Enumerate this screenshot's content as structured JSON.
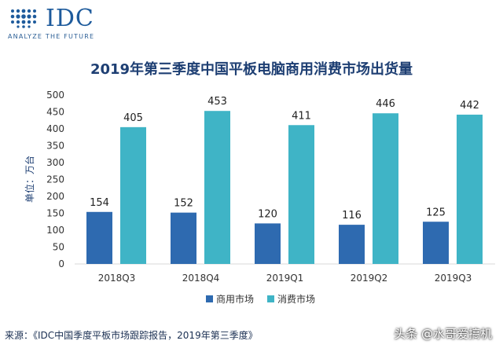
{
  "logo": {
    "wordmark": "IDC",
    "tagline": "ANALYZE THE FUTURE"
  },
  "watermark": "头条 @水哥爱搞机",
  "source": "来源：《IDC中国季度平板市场跟踪报告，2019年第三季度》",
  "colors": {
    "commercial": "#2e6ab0",
    "consumer": "#3fb4c6",
    "title": "#1e3f73",
    "axis_text": "#333333",
    "gridline": "#d9d9d9"
  },
  "chart_data": {
    "type": "bar",
    "title": "2019年第三季度中国平板电脑商用消费市场出货量",
    "ylabel": "单位：万台",
    "xlabel": "",
    "categories": [
      "2018Q3",
      "2018Q4",
      "2019Q1",
      "2019Q2",
      "2019Q3"
    ],
    "series": [
      {
        "name": "商用市场",
        "values": [
          154,
          152,
          120,
          116,
          125
        ]
      },
      {
        "name": "消费市场",
        "values": [
          405,
          453,
          411,
          446,
          442
        ]
      }
    ],
    "ylim": [
      0,
      500
    ],
    "yticks": [
      0,
      50,
      100,
      150,
      200,
      250,
      300,
      350,
      400,
      450,
      500
    ],
    "grid": false,
    "legend": "bottom",
    "data_labels": true
  }
}
